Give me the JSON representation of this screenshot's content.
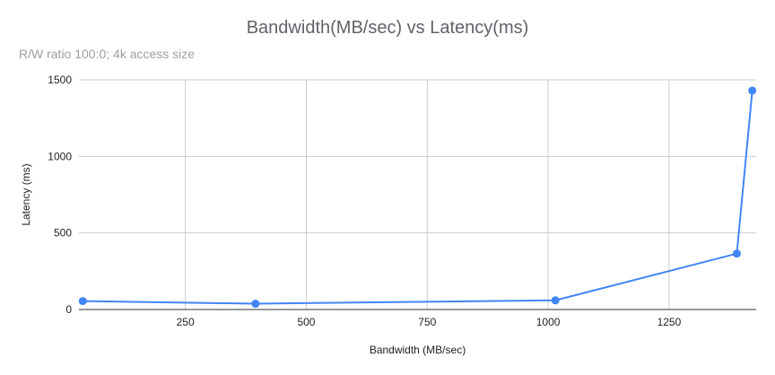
{
  "chart_data": {
    "type": "line",
    "title": "Bandwidth(MB/sec) vs Latency(ms)",
    "subtitle": "R/W ratio 100:0; 4k access size",
    "xlabel": "Bandwidth (MB/sec)",
    "ylabel": "Latency (ms)",
    "xlim": [
      30,
      1430
    ],
    "ylim": [
      0,
      1500
    ],
    "xticks": [
      250,
      500,
      750,
      1000,
      1250
    ],
    "yticks": [
      0,
      500,
      1000,
      1500
    ],
    "grid": true,
    "legend": "none",
    "series": [
      {
        "color": "#4285f4",
        "x": [
          38,
          395,
          1015,
          1390,
          1422
        ],
        "y": [
          55,
          38,
          60,
          365,
          1430
        ]
      }
    ]
  }
}
